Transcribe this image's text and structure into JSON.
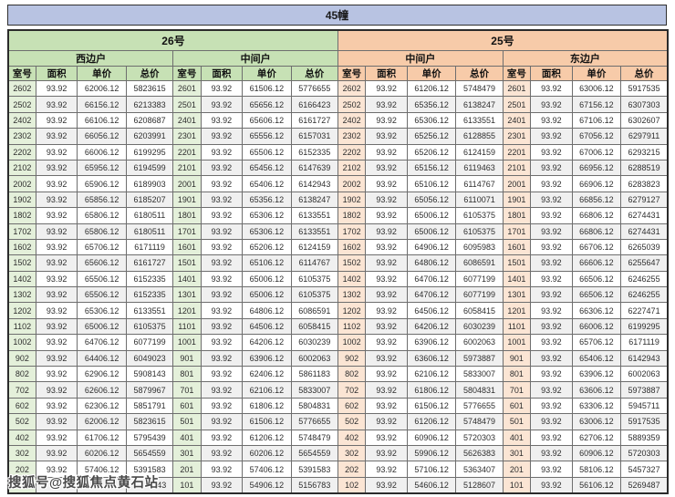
{
  "page": {
    "title": "45幢",
    "watermark": "搜狐号@搜狐焦点黄石站"
  },
  "colors": {
    "title_bar": "#b8c3e2",
    "green_header": "#c7e1b5",
    "green_room_cell": "#e4f0da",
    "peach_header": "#f7cba9",
    "peach_room_cell": "#fbe5d4",
    "row_stripe": "#f0f0f0"
  },
  "chart_data": {
    "type": "table",
    "title": "45幢",
    "column_headers": [
      "室号",
      "面积",
      "单价",
      "总价"
    ],
    "groups": [
      {
        "building": "26号",
        "units": [
          "西边户",
          "中间户"
        ],
        "theme": "green"
      },
      {
        "building": "25号",
        "units": [
          "中间户",
          "东边户"
        ],
        "theme": "peach"
      }
    ],
    "rows": [
      [
        "2602",
        "93.92",
        "62006.12",
        "5823615",
        "2601",
        "93.92",
        "61506.12",
        "5776655",
        "2602",
        "93.92",
        "61206.12",
        "5748479",
        "2601",
        "93.92",
        "63006.12",
        "5917535"
      ],
      [
        "2502",
        "93.92",
        "66156.12",
        "6213383",
        "2501",
        "93.92",
        "65656.12",
        "6166423",
        "2502",
        "93.92",
        "65356.12",
        "6138247",
        "2501",
        "93.92",
        "67156.12",
        "6307303"
      ],
      [
        "2402",
        "93.92",
        "66106.12",
        "6208687",
        "2401",
        "93.92",
        "65606.12",
        "6161727",
        "2402",
        "93.92",
        "65306.12",
        "6133551",
        "2401",
        "93.92",
        "67106.12",
        "6302607"
      ],
      [
        "2302",
        "93.92",
        "66056.12",
        "6203991",
        "2301",
        "93.92",
        "65556.12",
        "6157031",
        "2302",
        "93.92",
        "65256.12",
        "6128855",
        "2301",
        "93.92",
        "67056.12",
        "6297911"
      ],
      [
        "2202",
        "93.92",
        "66006.12",
        "6199295",
        "2201",
        "93.92",
        "65506.12",
        "6152335",
        "2202",
        "93.92",
        "65206.12",
        "6124159",
        "2201",
        "93.92",
        "67006.12",
        "6293215"
      ],
      [
        "2102",
        "93.92",
        "65956.12",
        "6194599",
        "2101",
        "93.92",
        "65456.12",
        "6147639",
        "2102",
        "93.92",
        "65156.12",
        "6119463",
        "2101",
        "93.92",
        "66956.12",
        "6288519"
      ],
      [
        "2002",
        "93.92",
        "65906.12",
        "6189903",
        "2001",
        "93.92",
        "65406.12",
        "6142943",
        "2002",
        "93.92",
        "65106.12",
        "6114767",
        "2001",
        "93.92",
        "66906.12",
        "6283823"
      ],
      [
        "1902",
        "93.92",
        "65856.12",
        "6185207",
        "1901",
        "93.92",
        "65356.12",
        "6138247",
        "1902",
        "93.92",
        "65056.12",
        "6110071",
        "1901",
        "93.92",
        "66856.12",
        "6279127"
      ],
      [
        "1802",
        "93.92",
        "65806.12",
        "6180511",
        "1801",
        "93.92",
        "65306.12",
        "6133551",
        "1802",
        "93.92",
        "65006.12",
        "6105375",
        "1801",
        "93.92",
        "66806.12",
        "6274431"
      ],
      [
        "1702",
        "93.92",
        "65806.12",
        "6180511",
        "1701",
        "93.92",
        "65306.12",
        "6133551",
        "1702",
        "93.92",
        "65006.12",
        "6105375",
        "1701",
        "93.92",
        "66806.12",
        "6274431"
      ],
      [
        "1602",
        "93.92",
        "65706.12",
        "6171119",
        "1601",
        "93.92",
        "65206.12",
        "6124159",
        "1602",
        "93.92",
        "64906.12",
        "6095983",
        "1601",
        "93.92",
        "66706.12",
        "6265039"
      ],
      [
        "1502",
        "93.92",
        "65606.12",
        "6161727",
        "1501",
        "93.92",
        "65106.12",
        "6114767",
        "1502",
        "93.92",
        "64806.12",
        "6086591",
        "1501",
        "93.92",
        "66606.12",
        "6255647"
      ],
      [
        "1402",
        "93.92",
        "65506.12",
        "6152335",
        "1401",
        "93.92",
        "65006.12",
        "6105375",
        "1402",
        "93.92",
        "64706.12",
        "6077199",
        "1401",
        "93.92",
        "66506.12",
        "6246255"
      ],
      [
        "1302",
        "93.92",
        "65506.12",
        "6152335",
        "1301",
        "93.92",
        "65006.12",
        "6105375",
        "1302",
        "93.92",
        "64706.12",
        "6077199",
        "1301",
        "93.92",
        "66506.12",
        "6246255"
      ],
      [
        "1202",
        "93.92",
        "65306.12",
        "6133551",
        "1201",
        "93.92",
        "64806.12",
        "6086591",
        "1202",
        "93.92",
        "64506.12",
        "6058415",
        "1201",
        "93.92",
        "66306.12",
        "6227471"
      ],
      [
        "1102",
        "93.92",
        "65006.12",
        "6105375",
        "1101",
        "93.92",
        "64506.12",
        "6058415",
        "1102",
        "93.92",
        "64206.12",
        "6030239",
        "1101",
        "93.92",
        "66006.12",
        "6199295"
      ],
      [
        "1002",
        "93.92",
        "64706.12",
        "6077199",
        "1001",
        "93.92",
        "64206.12",
        "6030239",
        "1002",
        "93.92",
        "63906.12",
        "6002063",
        "1001",
        "93.92",
        "65706.12",
        "6171119"
      ],
      [
        "902",
        "93.92",
        "64406.12",
        "6049023",
        "901",
        "93.92",
        "63906.12",
        "6002063",
        "902",
        "93.92",
        "63606.12",
        "5973887",
        "901",
        "93.92",
        "65406.12",
        "6142943"
      ],
      [
        "802",
        "93.92",
        "62906.12",
        "5908143",
        "801",
        "93.92",
        "62406.12",
        "5861183",
        "802",
        "93.92",
        "62106.12",
        "5833007",
        "801",
        "93.92",
        "63906.12",
        "6002063"
      ],
      [
        "702",
        "93.92",
        "62606.12",
        "5879967",
        "701",
        "93.92",
        "62106.12",
        "5833007",
        "702",
        "93.92",
        "61806.12",
        "5804831",
        "701",
        "93.92",
        "63606.12",
        "5973887"
      ],
      [
        "602",
        "93.92",
        "62306.12",
        "5851791",
        "601",
        "93.92",
        "61806.12",
        "5804831",
        "602",
        "93.92",
        "61506.12",
        "5776655",
        "601",
        "93.92",
        "63306.12",
        "5945711"
      ],
      [
        "502",
        "93.92",
        "62006.12",
        "5823615",
        "501",
        "93.92",
        "61506.12",
        "5776655",
        "502",
        "93.92",
        "61206.12",
        "5748479",
        "501",
        "93.92",
        "63006.12",
        "5917535"
      ],
      [
        "402",
        "93.92",
        "61706.12",
        "5795439",
        "401",
        "93.92",
        "61206.12",
        "5748479",
        "402",
        "93.92",
        "60906.12",
        "5720303",
        "401",
        "93.92",
        "62706.12",
        "5889359"
      ],
      [
        "302",
        "93.92",
        "60206.12",
        "5654559",
        "301",
        "93.92",
        "60206.12",
        "5654559",
        "302",
        "93.92",
        "59906.12",
        "5626383",
        "301",
        "93.92",
        "60906.12",
        "5720303"
      ],
      [
        "202",
        "93.92",
        "57406.12",
        "5391583",
        "201",
        "93.92",
        "57406.12",
        "5391583",
        "202",
        "93.92",
        "57106.12",
        "5363407",
        "201",
        "93.92",
        "58106.12",
        "5457327"
      ],
      [
        "",
        "",
        "",
        "743",
        "101",
        "93.92",
        "54906.12",
        "5156783",
        "102",
        "93.92",
        "54606.12",
        "5128607",
        "101",
        "93.92",
        "56106.12",
        "5269487"
      ]
    ]
  }
}
